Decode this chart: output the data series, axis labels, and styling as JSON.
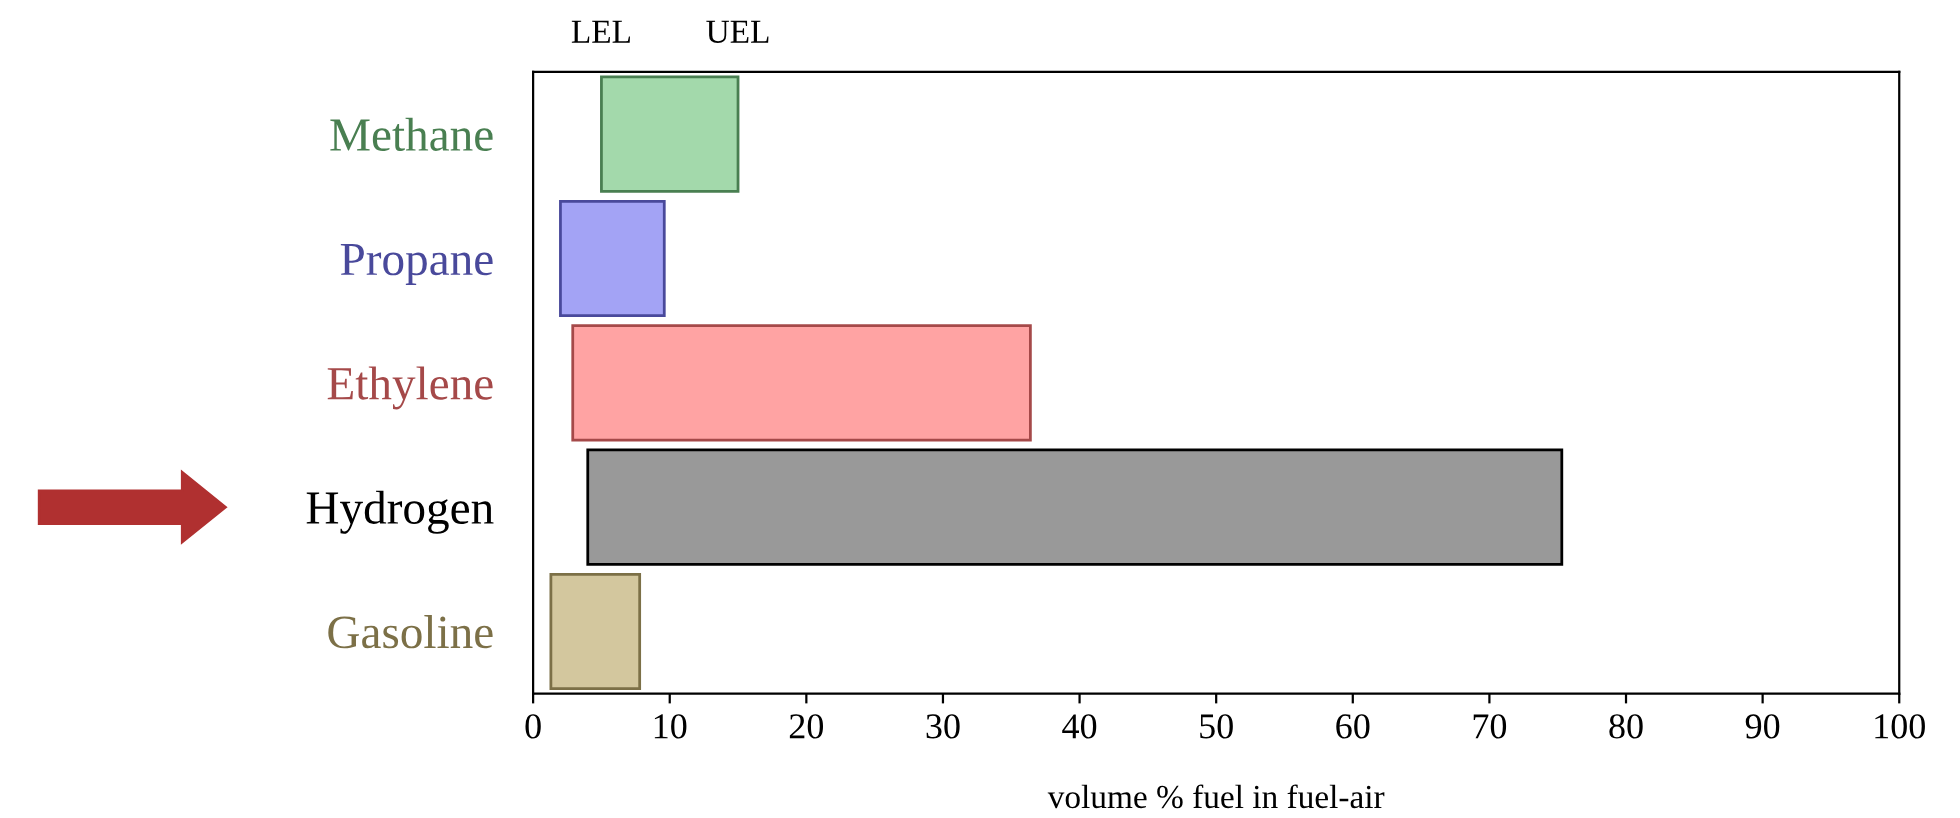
{
  "chart_data": {
    "type": "bar",
    "orientation": "horizontal",
    "xlabel": "volume % fuel in fuel-air",
    "categories": [
      "Methane",
      "Propane",
      "Ethylene",
      "Hydrogen",
      "Gasoline"
    ],
    "base": [
      5,
      2,
      2.9,
      4,
      1.3
    ],
    "values": [
      10,
      7.6,
      33.5,
      71.3,
      6.5
    ],
    "colors": [
      "#a3d9ab",
      "#a3a3f5",
      "#ffa3a3",
      "#999999",
      "#d3c79e"
    ],
    "xlim": [
      0,
      100
    ],
    "xticks": [
      0,
      10,
      20,
      30,
      40,
      50,
      60,
      70,
      80,
      90,
      100
    ],
    "annotations": [
      "LEL",
      "UEL"
    ],
    "grid": false,
    "legend": false
  }
}
